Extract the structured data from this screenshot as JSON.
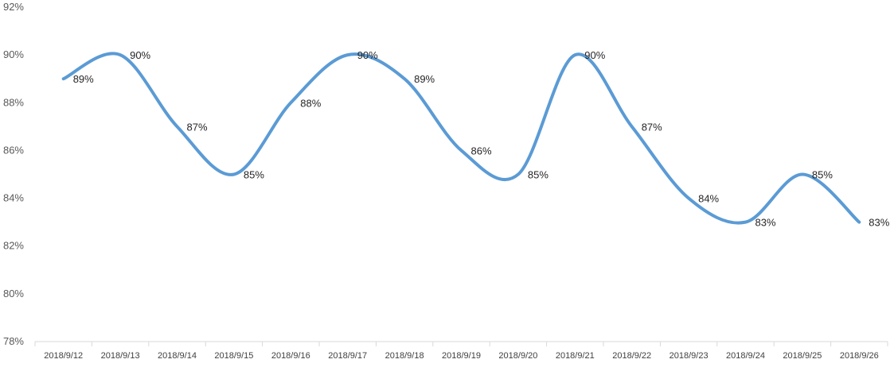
{
  "chart_data": {
    "type": "line",
    "categories": [
      "2018/9/12",
      "2018/9/13",
      "2018/9/14",
      "2018/9/15",
      "2018/9/16",
      "2018/9/17",
      "2018/9/18",
      "2018/9/19",
      "2018/9/20",
      "2018/9/21",
      "2018/9/22",
      "2018/9/23",
      "2018/9/24",
      "2018/9/25",
      "2018/9/26"
    ],
    "values": [
      89,
      90,
      87,
      85,
      88,
      90,
      89,
      86,
      85,
      90,
      87,
      84,
      83,
      85,
      83
    ],
    "data_labels": [
      "89%",
      "90%",
      "87%",
      "85%",
      "88%",
      "90%",
      "89%",
      "86%",
      "85%",
      "90%",
      "87%",
      "84%",
      "83%",
      "85%",
      "83%"
    ],
    "title": "",
    "xlabel": "",
    "ylabel": "",
    "ylim": [
      78,
      92
    ],
    "y_ticks": [
      78,
      80,
      82,
      84,
      86,
      88,
      90,
      92
    ],
    "y_tick_labels": [
      "78%",
      "80%",
      "82%",
      "84%",
      "86%",
      "88%",
      "90%",
      "92%"
    ],
    "smooth": true,
    "grid": false,
    "legend": "none",
    "line_color": "#5B9BD5",
    "axis_color": "#D9D9D9"
  }
}
